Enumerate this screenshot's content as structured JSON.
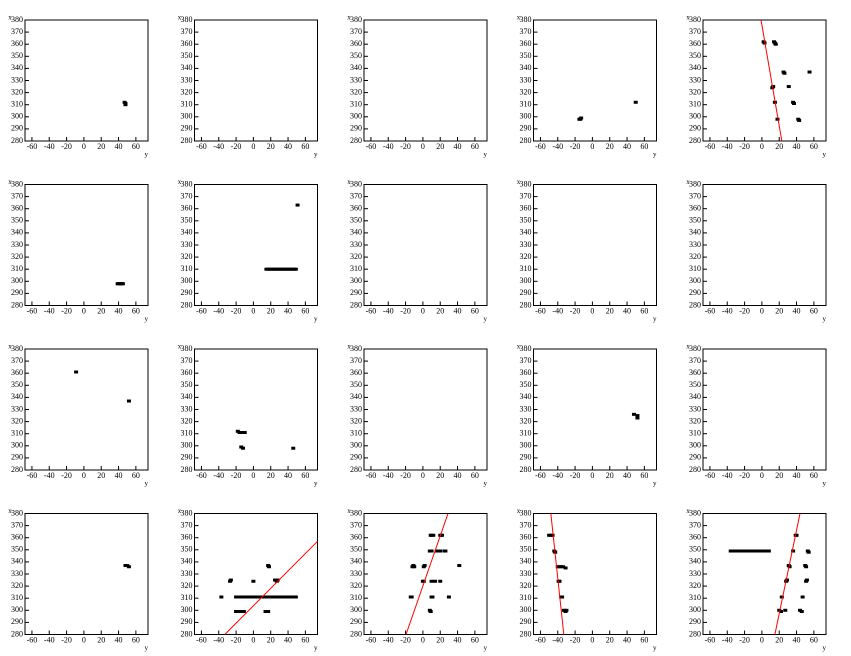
{
  "chart_data": [
    {
      "type": "scatter",
      "xlabel": "y",
      "ylabel": "x",
      "xlim": [
        -68,
        74
      ],
      "ylim": [
        280,
        380
      ],
      "xticks": [
        -60,
        -40,
        -20,
        0,
        20,
        40,
        60
      ],
      "yticks": [
        280,
        290,
        300,
        310,
        320,
        330,
        340,
        350,
        360,
        370,
        380
      ],
      "color": "#000000",
      "x": [
        47,
        48,
        48
      ],
      "y": [
        312,
        311,
        310
      ]
    },
    {
      "type": "scatter",
      "xlabel": "y",
      "ylabel": "x",
      "xlim": [
        -68,
        74
      ],
      "ylim": [
        280,
        380
      ],
      "xticks": [
        -60,
        -40,
        -20,
        0,
        20,
        40,
        60
      ],
      "yticks": [
        280,
        290,
        300,
        310,
        320,
        330,
        340,
        350,
        360,
        370,
        380
      ],
      "color": "#000000",
      "x": [],
      "y": []
    },
    {
      "type": "scatter",
      "xlabel": "y",
      "ylabel": "x",
      "xlim": [
        -68,
        74
      ],
      "ylim": [
        280,
        380
      ],
      "xticks": [
        -60,
        -40,
        -20,
        0,
        20,
        40,
        60
      ],
      "yticks": [
        280,
        290,
        300,
        310,
        320,
        330,
        340,
        350,
        360,
        370,
        380
      ],
      "color": "#000000",
      "x": [],
      "y": []
    },
    {
      "type": "scatter",
      "xlabel": "y",
      "ylabel": "x",
      "xlim": [
        -68,
        74
      ],
      "ylim": [
        280,
        380
      ],
      "xticks": [
        -60,
        -40,
        -20,
        0,
        20,
        40,
        60
      ],
      "yticks": [
        280,
        290,
        300,
        310,
        320,
        330,
        340,
        350,
        360,
        370,
        380
      ],
      "color": "#000000",
      "x": [
        -15,
        -14,
        -13,
        50
      ],
      "y": [
        298,
        298,
        299,
        312
      ]
    },
    {
      "type": "scatter",
      "xlabel": "y",
      "ylabel": "x",
      "xlim": [
        -68,
        74
      ],
      "ylim": [
        280,
        380
      ],
      "xticks": [
        -60,
        -40,
        -20,
        0,
        20,
        40,
        60
      ],
      "yticks": [
        280,
        290,
        300,
        310,
        320,
        330,
        340,
        350,
        360,
        370,
        380
      ],
      "color": "#000000",
      "x": [
        2,
        3,
        14,
        15,
        16,
        25,
        26,
        31,
        13,
        12,
        15,
        36,
        37,
        18,
        42,
        43,
        55
      ],
      "y": [
        362,
        361,
        362,
        361,
        360,
        337,
        336,
        325,
        325,
        324,
        312,
        312,
        311,
        298,
        298,
        297,
        337
      ],
      "fit": {
        "color": "#ff0000",
        "x": [
          -1,
          23
        ],
        "y": [
          380,
          280
        ]
      }
    },
    {
      "type": "scatter",
      "xlabel": "y",
      "ylabel": "x",
      "xlim": [
        -68,
        74
      ],
      "ylim": [
        280,
        380
      ],
      "xticks": [
        -60,
        -40,
        -20,
        0,
        20,
        40,
        60
      ],
      "yticks": [
        280,
        290,
        300,
        310,
        320,
        330,
        340,
        350,
        360,
        370,
        380
      ],
      "color": "#000000",
      "x": [
        39,
        40,
        41,
        42,
        43,
        44,
        45
      ],
      "y": [
        298,
        298,
        298,
        298,
        298,
        298,
        298
      ]
    },
    {
      "type": "scatter",
      "xlabel": "y",
      "ylabel": "x",
      "xlim": [
        -68,
        74
      ],
      "ylim": [
        280,
        380
      ],
      "xticks": [
        -60,
        -40,
        -20,
        0,
        20,
        40,
        60
      ],
      "yticks": [
        280,
        290,
        300,
        310,
        320,
        330,
        340,
        350,
        360,
        370,
        380
      ],
      "color": "#000000",
      "x": [
        15,
        17,
        19,
        21,
        23,
        25,
        27,
        29,
        31,
        33,
        35,
        37,
        39,
        41,
        43,
        45,
        47,
        49,
        51
      ],
      "y": [
        310,
        310,
        310,
        310,
        310,
        310,
        310,
        310,
        310,
        310,
        310,
        310,
        310,
        310,
        310,
        310,
        310,
        310,
        363
      ]
    },
    {
      "type": "scatter",
      "xlabel": "y",
      "ylabel": "x",
      "xlim": [
        -68,
        74
      ],
      "ylim": [
        280,
        380
      ],
      "xticks": [
        -60,
        -40,
        -20,
        0,
        20,
        40,
        60
      ],
      "yticks": [
        280,
        290,
        300,
        310,
        320,
        330,
        340,
        350,
        360,
        370,
        380
      ],
      "color": "#000000",
      "x": [],
      "y": []
    },
    {
      "type": "scatter",
      "xlabel": "y",
      "ylabel": "x",
      "xlim": [
        -68,
        74
      ],
      "ylim": [
        280,
        380
      ],
      "xticks": [
        -60,
        -40,
        -20,
        0,
        20,
        40,
        60
      ],
      "yticks": [
        280,
        290,
        300,
        310,
        320,
        330,
        340,
        350,
        360,
        370,
        380
      ],
      "color": "#000000",
      "x": [],
      "y": []
    },
    {
      "type": "scatter",
      "xlabel": "y",
      "ylabel": "x",
      "xlim": [
        -68,
        74
      ],
      "ylim": [
        280,
        380
      ],
      "xticks": [
        -60,
        -40,
        -20,
        0,
        20,
        40,
        60
      ],
      "yticks": [
        280,
        290,
        300,
        310,
        320,
        330,
        340,
        350,
        360,
        370,
        380
      ],
      "color": "#000000",
      "x": [],
      "y": []
    },
    {
      "type": "scatter",
      "xlabel": "y",
      "ylabel": "x",
      "xlim": [
        -68,
        74
      ],
      "ylim": [
        280,
        380
      ],
      "xticks": [
        -60,
        -40,
        -20,
        0,
        20,
        40,
        60
      ],
      "yticks": [
        280,
        290,
        300,
        310,
        320,
        330,
        340,
        350,
        360,
        370,
        380
      ],
      "color": "#000000",
      "x": [
        -9,
        52
      ],
      "y": [
        361,
        337
      ]
    },
    {
      "type": "scatter",
      "xlabel": "y",
      "ylabel": "x",
      "xlim": [
        -68,
        74
      ],
      "ylim": [
        280,
        380
      ],
      "xticks": [
        -60,
        -40,
        -20,
        0,
        20,
        40,
        60
      ],
      "yticks": [
        280,
        290,
        300,
        310,
        320,
        330,
        340,
        350,
        360,
        370,
        380
      ],
      "color": "#000000",
      "x": [
        -18,
        -16,
        -14,
        -12,
        -10,
        -14,
        -12,
        46
      ],
      "y": [
        312,
        311,
        311,
        311,
        311,
        299,
        298,
        298
      ]
    },
    {
      "type": "scatter",
      "xlabel": "y",
      "ylabel": "x",
      "xlim": [
        -68,
        74
      ],
      "ylim": [
        280,
        380
      ],
      "xticks": [
        -60,
        -40,
        -20,
        0,
        20,
        40,
        60
      ],
      "yticks": [
        280,
        290,
        300,
        310,
        320,
        330,
        340,
        350,
        360,
        370,
        380
      ],
      "color": "#000000",
      "x": [],
      "y": []
    },
    {
      "type": "scatter",
      "xlabel": "y",
      "ylabel": "x",
      "xlim": [
        -68,
        74
      ],
      "ylim": [
        280,
        380
      ],
      "xticks": [
        -60,
        -40,
        -20,
        0,
        20,
        40,
        60
      ],
      "yticks": [
        280,
        290,
        300,
        310,
        320,
        330,
        340,
        350,
        360,
        370,
        380
      ],
      "color": "#000000",
      "x": [
        48,
        52,
        52
      ],
      "y": [
        326,
        325,
        323
      ]
    },
    {
      "type": "scatter",
      "xlabel": "y",
      "ylabel": "x",
      "xlim": [
        -68,
        74
      ],
      "ylim": [
        280,
        380
      ],
      "xticks": [
        -60,
        -40,
        -20,
        0,
        20,
        40,
        60
      ],
      "yticks": [
        280,
        290,
        300,
        310,
        320,
        330,
        340,
        350,
        360,
        370,
        380
      ],
      "color": "#000000",
      "x": [],
      "y": []
    },
    {
      "type": "scatter",
      "xlabel": "y",
      "ylabel": "x",
      "xlim": [
        -68,
        74
      ],
      "ylim": [
        280,
        380
      ],
      "xticks": [
        -60,
        -40,
        -20,
        0,
        20,
        40,
        60
      ],
      "yticks": [
        280,
        290,
        300,
        310,
        320,
        330,
        340,
        350,
        360,
        370,
        380
      ],
      "color": "#000000",
      "x": [
        48,
        50,
        52
      ],
      "y": [
        337,
        337,
        336
      ]
    },
    {
      "type": "scatter",
      "xlabel": "y",
      "ylabel": "x",
      "xlim": [
        -68,
        74
      ],
      "ylim": [
        280,
        380
      ],
      "xticks": [
        -60,
        -40,
        -20,
        0,
        20,
        40,
        60
      ],
      "yticks": [
        280,
        290,
        300,
        310,
        320,
        330,
        340,
        350,
        360,
        370,
        380
      ],
      "color": "#000000",
      "x": [
        -37,
        -20,
        -17,
        -14,
        -11,
        -8,
        -5,
        -2,
        1,
        4,
        7,
        10,
        13,
        16,
        19,
        22,
        25,
        28,
        31,
        34,
        37,
        40,
        43,
        46,
        49,
        -20,
        -17,
        -14,
        -11,
        14,
        17,
        -27,
        -26,
        0,
        25,
        27,
        28,
        17,
        18
      ],
      "y": [
        311,
        311,
        311,
        311,
        311,
        311,
        311,
        311,
        311,
        311,
        311,
        311,
        311,
        311,
        311,
        311,
        311,
        311,
        311,
        311,
        311,
        311,
        311,
        311,
        311,
        299,
        299,
        299,
        299,
        299,
        299,
        324,
        325,
        324,
        325,
        324,
        325,
        337,
        336
      ],
      "fit": {
        "color": "#ff0000",
        "x": [
          -33,
          74
        ],
        "y": [
          280,
          357
        ]
      }
    },
    {
      "type": "scatter",
      "xlabel": "y",
      "ylabel": "x",
      "xlim": [
        -68,
        74
      ],
      "ylim": [
        280,
        380
      ],
      "xticks": [
        -60,
        -40,
        -20,
        0,
        20,
        40,
        60
      ],
      "yticks": [
        280,
        290,
        300,
        310,
        320,
        330,
        340,
        350,
        360,
        370,
        380
      ],
      "color": "#000000",
      "x": [
        9,
        10,
        12,
        20,
        21,
        22,
        8,
        10,
        16,
        18,
        20,
        25,
        26,
        -12,
        -10,
        -11,
        1,
        2,
        42,
        0,
        1,
        10,
        14,
        20,
        -14,
        -13,
        10,
        11,
        30,
        8,
        9
      ],
      "y": [
        362,
        362,
        362,
        362,
        362,
        362,
        349,
        349,
        349,
        349,
        349,
        349,
        349,
        336,
        336,
        337,
        336,
        337,
        337,
        324,
        324,
        324,
        324,
        324,
        311,
        311,
        311,
        311,
        311,
        300,
        299
      ],
      "fit": {
        "color": "#ff0000",
        "x": [
          -19.5,
          29
        ],
        "y": [
          280,
          380
        ]
      }
    },
    {
      "type": "scatter",
      "xlabel": "y",
      "ylabel": "x",
      "xlim": [
        -68,
        74
      ],
      "ylim": [
        280,
        380
      ],
      "xticks": [
        -60,
        -40,
        -20,
        0,
        20,
        40,
        60
      ],
      "yticks": [
        280,
        290,
        300,
        310,
        320,
        330,
        340,
        350,
        360,
        370,
        380
      ],
      "color": "#000000",
      "x": [
        -50,
        -48,
        -46,
        -44,
        -43,
        -40,
        -38,
        -36,
        -34,
        -31,
        -39,
        -38,
        -36,
        -35,
        -33,
        -31,
        -30
      ],
      "y": [
        362,
        362,
        362,
        349,
        348,
        336,
        336,
        336,
        336,
        335,
        324,
        324,
        311,
        311,
        300,
        299,
        300
      ],
      "fit": {
        "color": "#ff0000",
        "x": [
          -48,
          -33
        ],
        "y": [
          380,
          280
        ]
      }
    },
    {
      "type": "scatter",
      "xlabel": "y",
      "ylabel": "x",
      "xlim": [
        -68,
        74
      ],
      "ylim": [
        280,
        380
      ],
      "xticks": [
        -60,
        -40,
        -20,
        0,
        20,
        40,
        60
      ],
      "yticks": [
        280,
        290,
        300,
        310,
        320,
        330,
        340,
        350,
        360,
        370,
        380
      ],
      "color": "#000000",
      "x": [
        -36,
        -34,
        -31,
        -28,
        -25,
        -22,
        -19,
        -16,
        -13,
        -10,
        -7,
        -4,
        -1,
        2,
        5,
        8,
        36,
        53,
        54,
        39,
        40,
        31,
        32,
        50,
        51,
        28,
        29,
        51,
        52,
        23,
        47,
        20,
        22,
        27,
        44,
        46
      ],
      "y": [
        349,
        349,
        349,
        349,
        349,
        349,
        349,
        349,
        349,
        349,
        349,
        349,
        349,
        349,
        349,
        349,
        349,
        349,
        348,
        362,
        362,
        337,
        336,
        337,
        336,
        324,
        325,
        324,
        325,
        311,
        311,
        300,
        299,
        300,
        300,
        299
      ],
      "fit": {
        "color": "#ff0000",
        "x": [
          15,
          44
        ],
        "y": [
          280,
          380
        ]
      }
    }
  ]
}
